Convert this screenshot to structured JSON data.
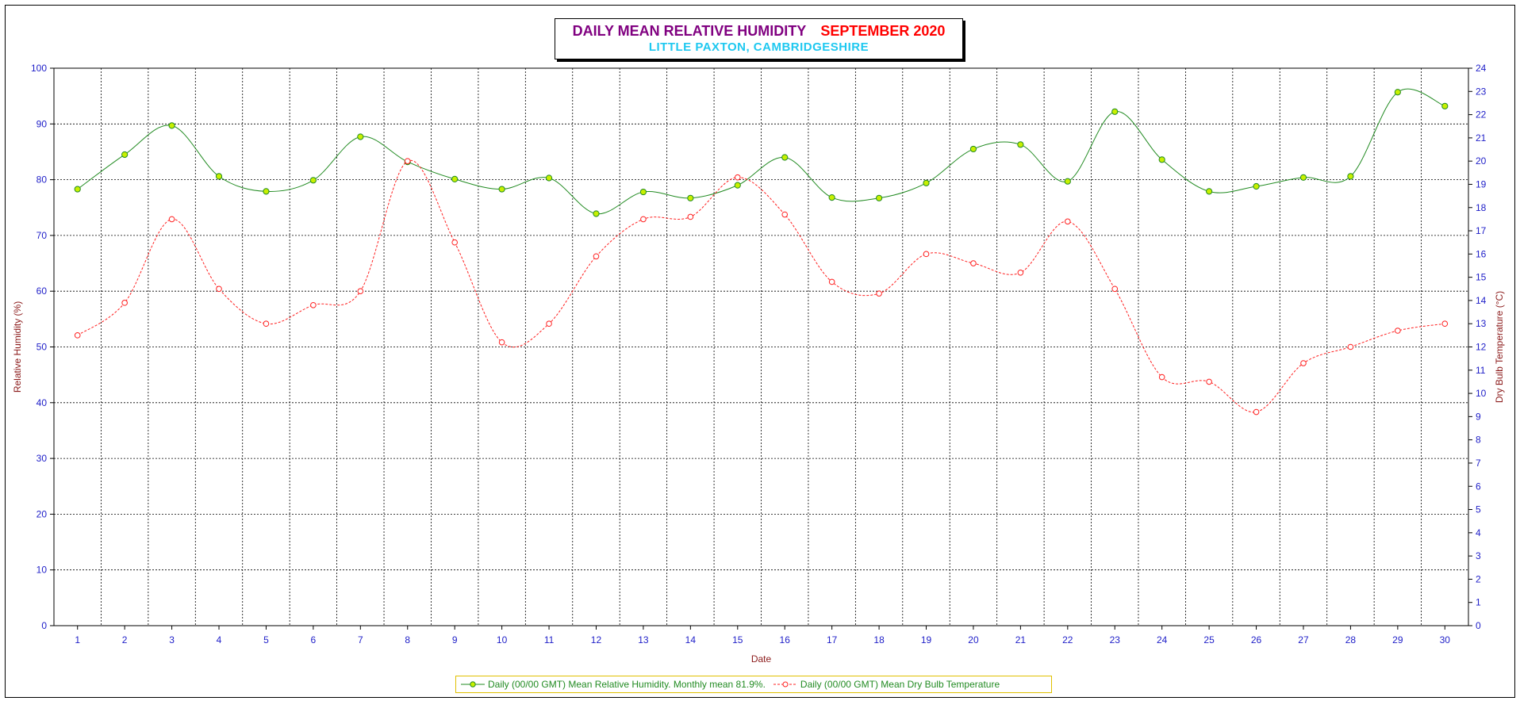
{
  "title": {
    "main": "DAILY MEAN RELATIVE HUMIDITY",
    "month": "SEPTEMBER 2020",
    "location": "LITTLE PAXTON, CAMBRIDGESHIRE"
  },
  "colors": {
    "title_main": "#800080",
    "title_month": "#ff0000",
    "title_location": "#1ec8f0",
    "humidity_line": "#228b22",
    "humidity_marker": "#c8f000",
    "temperature_line": "#ff2020",
    "axis_tick_text": "#1e1ec8",
    "axis_label_text": "#8b1a1a"
  },
  "chart_data": {
    "type": "line",
    "xlabel": "Date",
    "ylabel_left": "Relative Humidity (%)",
    "ylabel_right": "Dry Bulb Temperature (°C)",
    "x": [
      1,
      2,
      3,
      4,
      5,
      6,
      7,
      8,
      9,
      10,
      11,
      12,
      13,
      14,
      15,
      16,
      17,
      18,
      19,
      20,
      21,
      22,
      23,
      24,
      25,
      26,
      27,
      28,
      29,
      30
    ],
    "ylim_left": [
      0,
      100
    ],
    "ylim_right": [
      0,
      24
    ],
    "yticks_left": [
      0,
      10,
      20,
      30,
      40,
      50,
      60,
      70,
      80,
      90,
      100
    ],
    "yticks_right": [
      0,
      1,
      2,
      3,
      4,
      5,
      6,
      7,
      8,
      9,
      10,
      11,
      12,
      13,
      14,
      15,
      16,
      17,
      18,
      19,
      20,
      21,
      22,
      23,
      24
    ],
    "grid": true,
    "legend_position": "bottom",
    "series": [
      {
        "name": "Daily (00/00 GMT) Mean Relative Humidity. Monthly mean 81.9%.",
        "axis": "left",
        "style": "solid",
        "values": [
          78.3,
          84.5,
          89.7,
          80.6,
          77.9,
          79.9,
          87.7,
          83.2,
          80.1,
          78.3,
          80.3,
          73.9,
          77.8,
          76.7,
          79.0,
          84.0,
          76.8,
          76.7,
          79.4,
          85.5,
          86.3,
          79.7,
          92.2,
          83.6,
          77.9,
          78.8,
          80.4,
          80.6,
          95.7,
          93.2
        ]
      },
      {
        "name": "Daily (00/00 GMT) Mean Dry Bulb Temperature",
        "axis": "right",
        "style": "dashed",
        "values": [
          12.5,
          13.9,
          17.5,
          14.5,
          13.0,
          13.8,
          14.4,
          20.0,
          16.5,
          12.2,
          13.0,
          15.9,
          17.5,
          17.6,
          19.3,
          17.7,
          14.8,
          14.3,
          16.0,
          15.6,
          15.2,
          17.4,
          14.5,
          10.7,
          10.5,
          9.2,
          11.3,
          12.0,
          12.7,
          13.0
        ]
      }
    ]
  }
}
